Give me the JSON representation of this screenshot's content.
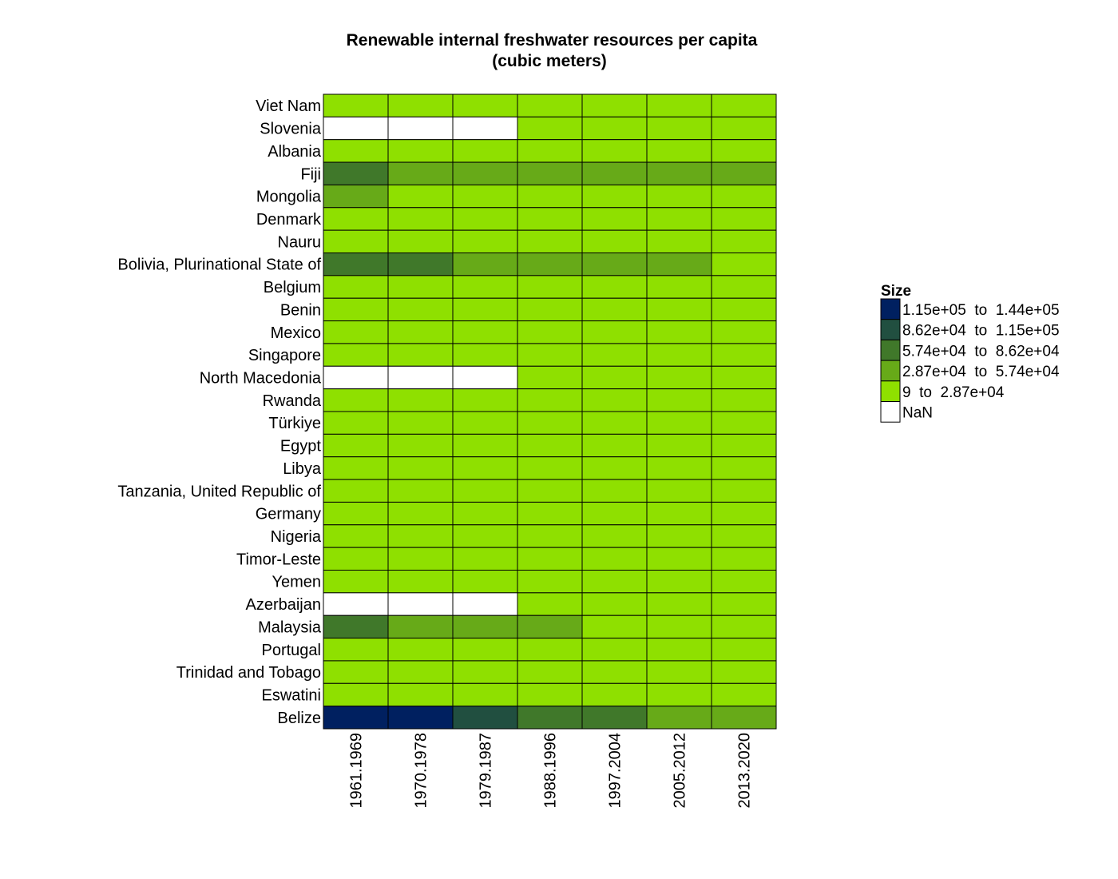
{
  "chart_data": {
    "type": "heatmap",
    "title": "Renewable internal freshwater resources per capita",
    "subtitle": "(cubic meters)",
    "columns": [
      "1961.1969",
      "1970.1978",
      "1979.1987",
      "1988.1996",
      "1997.2004",
      "2005.2012",
      "2013.2020"
    ],
    "rows": [
      "Viet Nam",
      "Slovenia",
      "Albania",
      "Fiji",
      "Mongolia",
      "Denmark",
      "Nauru",
      "Bolivia, Plurinational State of",
      "Belgium",
      "Benin",
      "Mexico",
      "Singapore",
      "North Macedonia",
      "Rwanda",
      "Türkiye",
      "Egypt",
      "Libya",
      "Tanzania, United Republic of",
      "Germany",
      "Nigeria",
      "Timor-Leste",
      "Yemen",
      "Azerbaijan",
      "Malaysia",
      "Portugal",
      "Trinidad and Tobago",
      "Eswatini",
      "Belize"
    ],
    "values": [
      [
        9500,
        7500,
        6000,
        5000,
        4500,
        4100,
        3700
      ],
      [
        null,
        null,
        null,
        9400,
        9400,
        9200,
        9000
      ],
      [
        12500,
        10000,
        8500,
        8300,
        8600,
        8800,
        9200
      ],
      [
        72000,
        55000,
        48000,
        40000,
        36000,
        34000,
        32000
      ],
      [
        30000,
        24000,
        18000,
        15000,
        13000,
        12000,
        10500
      ],
      [
        1300,
        1200,
        1170,
        1160,
        1130,
        1090,
        1040
      ],
      [
        20,
        15,
        12,
        11,
        10,
        9,
        9
      ],
      [
        79000,
        66000,
        55000,
        46000,
        39000,
        34000,
        27000
      ],
      [
        1300,
        1250,
        1220,
        1200,
        1170,
        1100,
        1050
      ],
      [
        4200,
        3500,
        2700,
        2000,
        1500,
        1200,
        900
      ],
      [
        9000,
        7000,
        5400,
        4500,
        4000,
        3600,
        3200
      ],
      [
        350,
        280,
        240,
        200,
        160,
        130,
        105
      ],
      [
        null,
        null,
        null,
        2700,
        2650,
        2620,
        2600
      ],
      [
        3000,
        2300,
        1700,
        1500,
        1100,
        900,
        750
      ],
      [
        7000,
        5600,
        4600,
        3800,
        3300,
        3000,
        2700
      ],
      [
        50,
        40,
        33,
        27,
        23,
        20,
        17
      ],
      [
        400,
        280,
        190,
        140,
        120,
        110,
        100
      ],
      [
        7500,
        5500,
        4200,
        3200,
        2500,
        2000,
        1600
      ],
      [
        1400,
        1350,
        1380,
        1320,
        1300,
        1310,
        1290
      ],
      [
        4500,
        3500,
        2700,
        2100,
        1700,
        1400,
        1100
      ],
      [
        16000,
        13000,
        11000,
        9500,
        9000,
        7500,
        6500
      ],
      [
        350,
        280,
        200,
        150,
        115,
        90,
        70
      ],
      [
        null,
        null,
        null,
        1100,
        1000,
        900,
        850
      ],
      [
        64000,
        52000,
        42000,
        33000,
        27000,
        22000,
        19000
      ],
      [
        4000,
        3900,
        3800,
        3800,
        3700,
        3650,
        3650
      ],
      [
        3200,
        3000,
        2800,
        2700,
        2650,
        2600,
        2550
      ],
      [
        5500,
        4300,
        3300,
        2600,
        2300,
        2100,
        2000
      ],
      [
        140000,
        120000,
        95000,
        75000,
        60000,
        50000,
        42000
      ]
    ],
    "legend": {
      "title": "Size",
      "bins": [
        {
          "label": "1.15e+05  to  1.44e+05",
          "min": 115000,
          "max": 144000,
          "color": "#002060"
        },
        {
          "label": "8.62e+04  to  1.15e+05",
          "min": 86200,
          "max": 115000,
          "color": "#214f40"
        },
        {
          "label": "5.74e+04  to  8.62e+04",
          "min": 57400,
          "max": 86200,
          "color": "#40782a"
        },
        {
          "label": "2.87e+04  to  5.74e+04",
          "min": 28700,
          "max": 57400,
          "color": "#67aa18"
        },
        {
          "label": "9  to  2.87e+04",
          "min": 9,
          "max": 28700,
          "color": "#8fe000"
        },
        {
          "label": "NaN",
          "color": "#ffffff"
        }
      ]
    }
  }
}
